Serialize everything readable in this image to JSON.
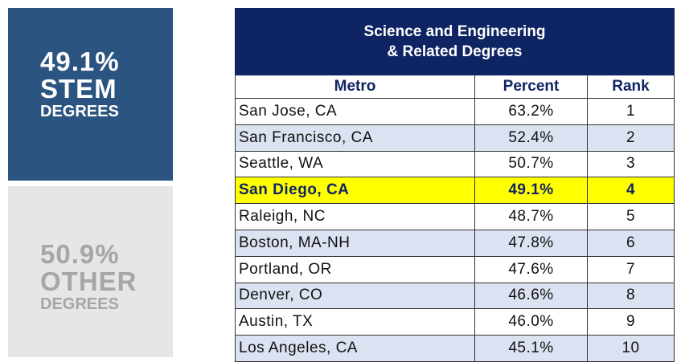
{
  "panels": [
    {
      "value": "49.1%",
      "label": "STEM",
      "sub": "DEGREES"
    },
    {
      "value": "50.9%",
      "label": "OTHER",
      "sub": "DEGREES"
    }
  ],
  "table": {
    "title": [
      "Science and Engineering",
      "& Related Degrees"
    ],
    "columns": [
      "Metro",
      "Percent",
      "Rank"
    ],
    "highlight_row": 3,
    "rows": [
      [
        "San Jose, CA",
        "63.2%",
        1
      ],
      [
        "San Francisco, CA",
        "52.4%",
        2
      ],
      [
        "Seattle, WA",
        "50.7%",
        3
      ],
      [
        "San Diego, CA",
        "49.1%",
        4
      ],
      [
        "Raleigh, NC",
        "48.7%",
        5
      ],
      [
        "Boston, MA-NH",
        "47.8%",
        6
      ],
      [
        "Portland, OR",
        "47.6%",
        7
      ],
      [
        "Denver, CO",
        "46.6%",
        8
      ],
      [
        "Austin, TX",
        "46.0%",
        9
      ],
      [
        "Los Angeles, CA",
        "45.1%",
        10
      ]
    ]
  }
}
